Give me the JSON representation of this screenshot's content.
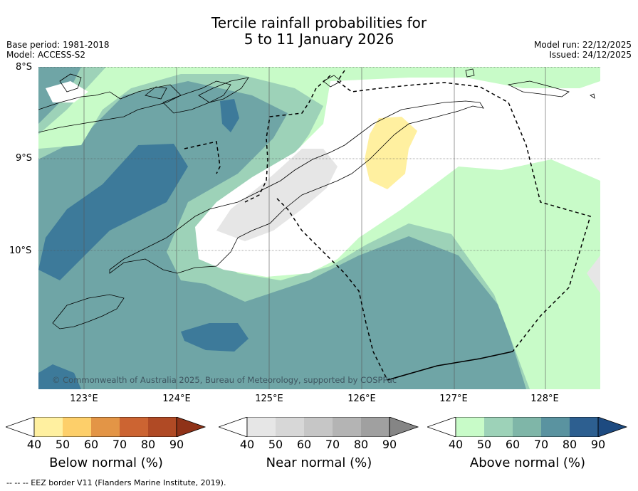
{
  "header": {
    "title_line1": "Tercile rainfall probabilities for",
    "title_line2": "5 to 11 January 2026",
    "base_period": "Base period: 1981-2018",
    "model": "Model: ACCESS-S2",
    "model_run": "Model run: 22/12/2025",
    "issued": "Issued: 24/12/2025"
  },
  "map": {
    "lat_labels": [
      "8°S",
      "9°S",
      "10°S"
    ],
    "lon_labels": [
      "123°E",
      "124°E",
      "125°E",
      "126°E",
      "127°E",
      "128°E"
    ],
    "copyright": "© Commonwealth of Australia 2025, Bureau of Meteorology, supported by COSPPac"
  },
  "colorbars": [
    {
      "title": "Below normal (%)",
      "ticks": [
        "40",
        "50",
        "60",
        "70",
        "80",
        "90"
      ],
      "colors": [
        "#ffffff",
        "#fff0a0",
        "#fdcf6a",
        "#e39546",
        "#cc6432",
        "#b04a25",
        "#8f3218"
      ]
    },
    {
      "title": "Near normal (%)",
      "ticks": [
        "40",
        "50",
        "60",
        "70",
        "80",
        "90"
      ],
      "colors": [
        "#ffffff",
        "#e6e6e6",
        "#d7d7d7",
        "#c6c6c6",
        "#b4b4b4",
        "#a0a0a0",
        "#858585"
      ]
    },
    {
      "title": "Above normal (%)",
      "ticks": [
        "40",
        "50",
        "60",
        "70",
        "80",
        "90"
      ],
      "colors": [
        "#ffffff",
        "#c8fbc8",
        "#9dd2b8",
        "#7fb6a8",
        "#5a93a0",
        "#2d5f90",
        "#1d4a80"
      ]
    }
  ],
  "footer": {
    "legend_text": "--  --  -- EEZ border V11 (Flanders Marine Institute, 2019)."
  },
  "colors": {
    "above_40": "#c8fbc8",
    "above_50": "#9dd2b8",
    "above_60": "#6fa5a6",
    "above_70": "#3d7a9a",
    "near_40": "#e6e6e6",
    "below_40": "#fff0a0"
  }
}
